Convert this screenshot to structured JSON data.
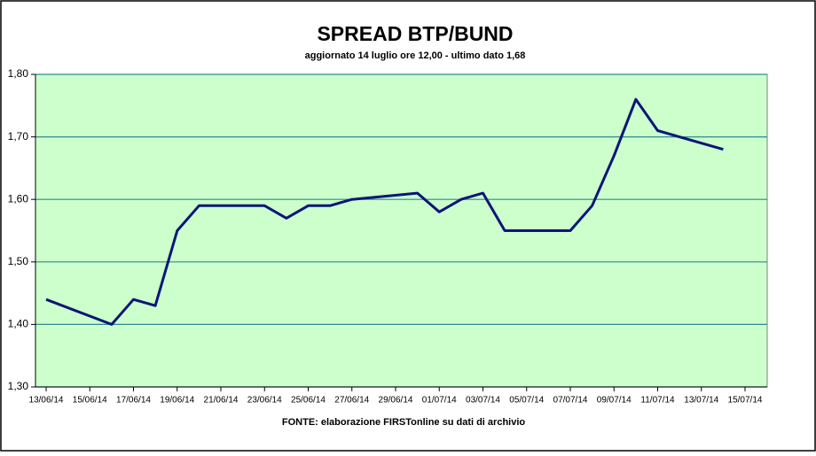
{
  "chart_data": {
    "type": "line",
    "title": "SPREAD BTP/BUND",
    "subtitle": "aggiornato 14 luglio ore 12,00 - ultimo dato 1,68",
    "source": "FONTE: elaborazione FIRSTonline su dati di archivio",
    "x": [
      "13/06/14",
      "16/06/14",
      "17/06/14",
      "18/06/14",
      "19/06/14",
      "20/06/14",
      "23/06/14",
      "24/06/14",
      "25/06/14",
      "26/06/14",
      "27/06/14",
      "30/06/14",
      "01/07/14",
      "02/07/14",
      "03/07/14",
      "04/07/14",
      "07/07/14",
      "08/07/14",
      "09/07/14",
      "10/07/14",
      "11/07/14",
      "14/07/14"
    ],
    "series": [
      {
        "name": "Spread",
        "color": "#0c1577",
        "values": [
          1.44,
          1.4,
          1.44,
          1.43,
          1.55,
          1.59,
          1.59,
          1.57,
          1.59,
          1.59,
          1.6,
          1.61,
          1.58,
          1.6,
          1.61,
          1.55,
          1.55,
          1.59,
          1.67,
          1.76,
          1.71,
          1.68
        ]
      }
    ],
    "xlim": [
      "13/06/14",
      "15/07/14"
    ],
    "xticks": [
      "13/06/14",
      "15/06/14",
      "17/06/14",
      "19/06/14",
      "21/06/14",
      "23/06/14",
      "25/06/14",
      "27/06/14",
      "29/06/14",
      "01/07/14",
      "03/07/14",
      "05/07/14",
      "07/07/14",
      "09/07/14",
      "11/07/14",
      "13/07/14",
      "15/07/14"
    ],
    "ylim": [
      1.3,
      1.8
    ],
    "yticks": [
      {
        "value": 1.3,
        "label": "1,30"
      },
      {
        "value": 1.4,
        "label": "1,40"
      },
      {
        "value": 1.5,
        "label": "1,50"
      },
      {
        "value": 1.6,
        "label": "1,60"
      },
      {
        "value": 1.7,
        "label": "1,70"
      },
      {
        "value": 1.8,
        "label": "1,80"
      }
    ],
    "grid": true,
    "background": "#ccffcc"
  }
}
